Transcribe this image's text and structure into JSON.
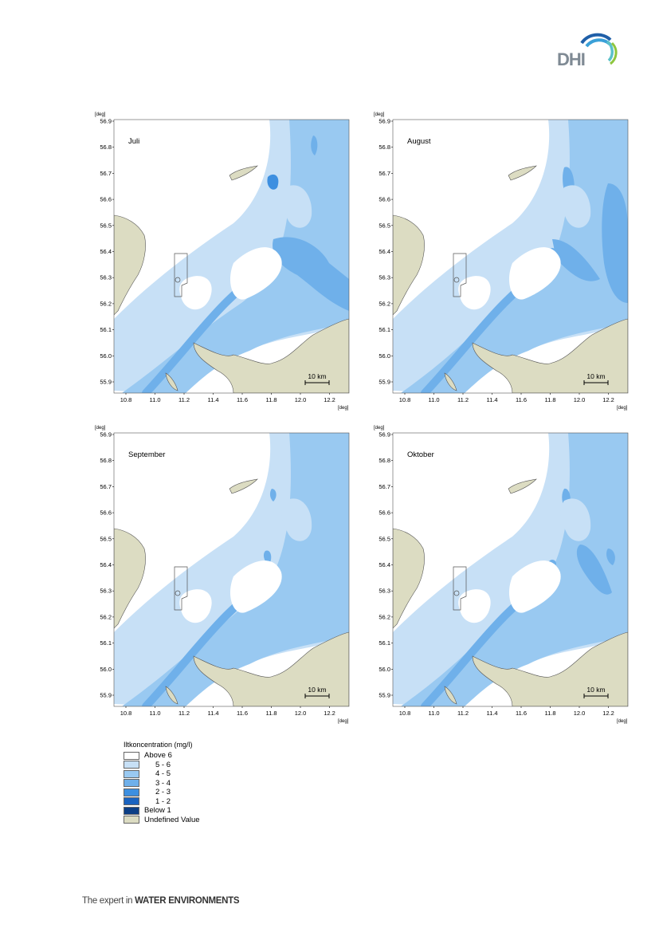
{
  "header": {
    "logo_text": "DHI",
    "logo_colors": [
      "#1f5fa8",
      "#3aa0d8",
      "#5bc1c9",
      "#8ec63f"
    ]
  },
  "maps": {
    "axis_unit": "[deg]",
    "x_ticks": [
      "10.8",
      "11.0",
      "11.2",
      "11.4",
      "11.6",
      "11.8",
      "12.0",
      "12.2"
    ],
    "y_ticks": [
      "56.9",
      "56.8",
      "56.7",
      "56.6",
      "56.5",
      "56.4",
      "56.3",
      "56.2",
      "56.1",
      "56.0",
      "55.9"
    ],
    "scale_label": "10 km",
    "panels": [
      {
        "month": "Juli"
      },
      {
        "month": "August"
      },
      {
        "month": "September"
      },
      {
        "month": "Oktober"
      }
    ]
  },
  "legend": {
    "title": "Iltkoncentration (mg/l)",
    "items": [
      {
        "label": "Above 6",
        "color": "#ffffff",
        "indent": false
      },
      {
        "label": "5 - 6",
        "color": "#c7e0f6",
        "indent": true
      },
      {
        "label": "4 - 5",
        "color": "#99c9f1",
        "indent": true
      },
      {
        "label": "3 - 4",
        "color": "#6fb0ea",
        "indent": true
      },
      {
        "label": "2 - 3",
        "color": "#3d8fe0",
        "indent": true
      },
      {
        "label": "1 - 2",
        "color": "#1a63c0",
        "indent": true
      },
      {
        "label": "Below 1",
        "color": "#0d3f86",
        "indent": false
      },
      {
        "label": "Undefined Value",
        "color": "#dcdcc2",
        "indent": false
      }
    ]
  },
  "footer": {
    "prefix": "The expert in ",
    "bold": "WATER ENVIRONMENTS"
  }
}
